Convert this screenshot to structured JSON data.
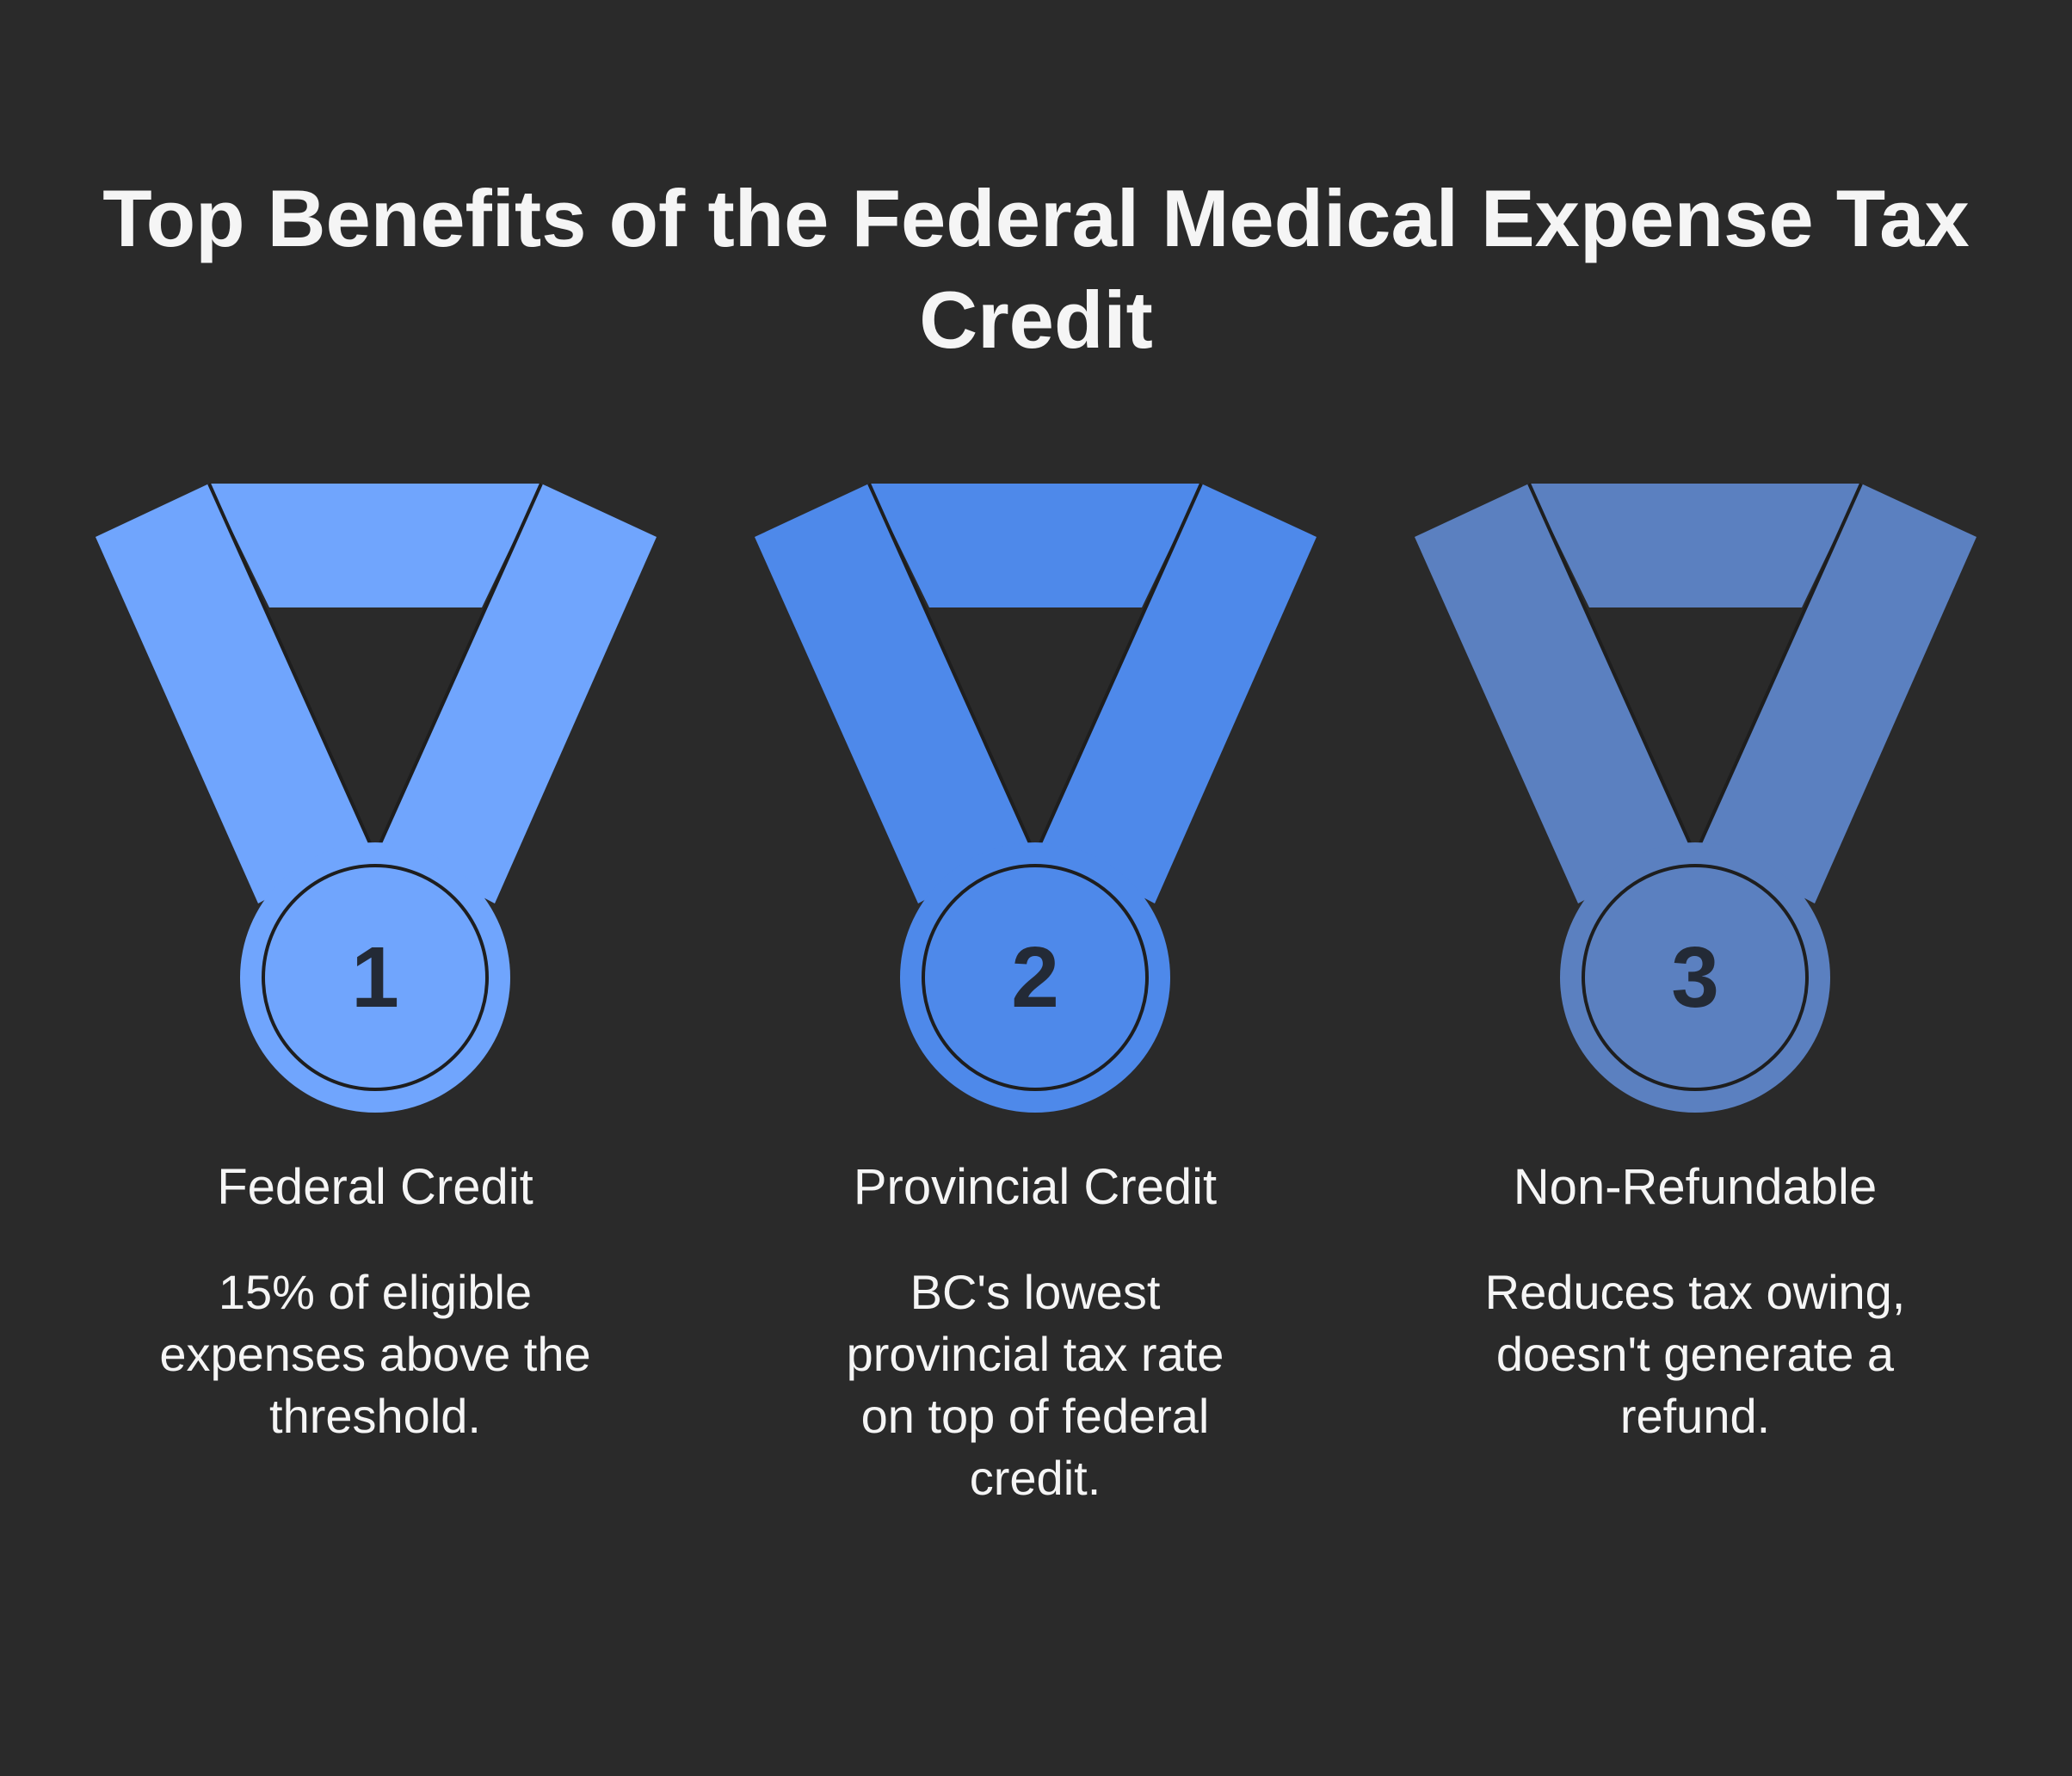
{
  "title": {
    "line1": "Top Benefits of the Federal Medical Expense Tax",
    "line2": "Credit"
  },
  "medals": [
    {
      "number": "1",
      "color": "#70a5fd",
      "heading": "Federal Credit",
      "description": [
        "15% of eligible",
        "expenses above the",
        "threshold."
      ]
    },
    {
      "number": "2",
      "color": "#4e89ea",
      "heading": "Provincial Credit",
      "description": [
        "BC's lowest",
        "provincial tax rate",
        "on top of federal",
        "credit."
      ]
    },
    {
      "number": "3",
      "color": "#5b80c0",
      "heading": "Non-Refundable",
      "description": [
        "Reduces tax owing,",
        "doesn't generate a",
        "refund."
      ]
    }
  ],
  "colors": {
    "background": "#2a2a2a",
    "outline": "#1e1e1e",
    "number_text": "#232a36"
  }
}
